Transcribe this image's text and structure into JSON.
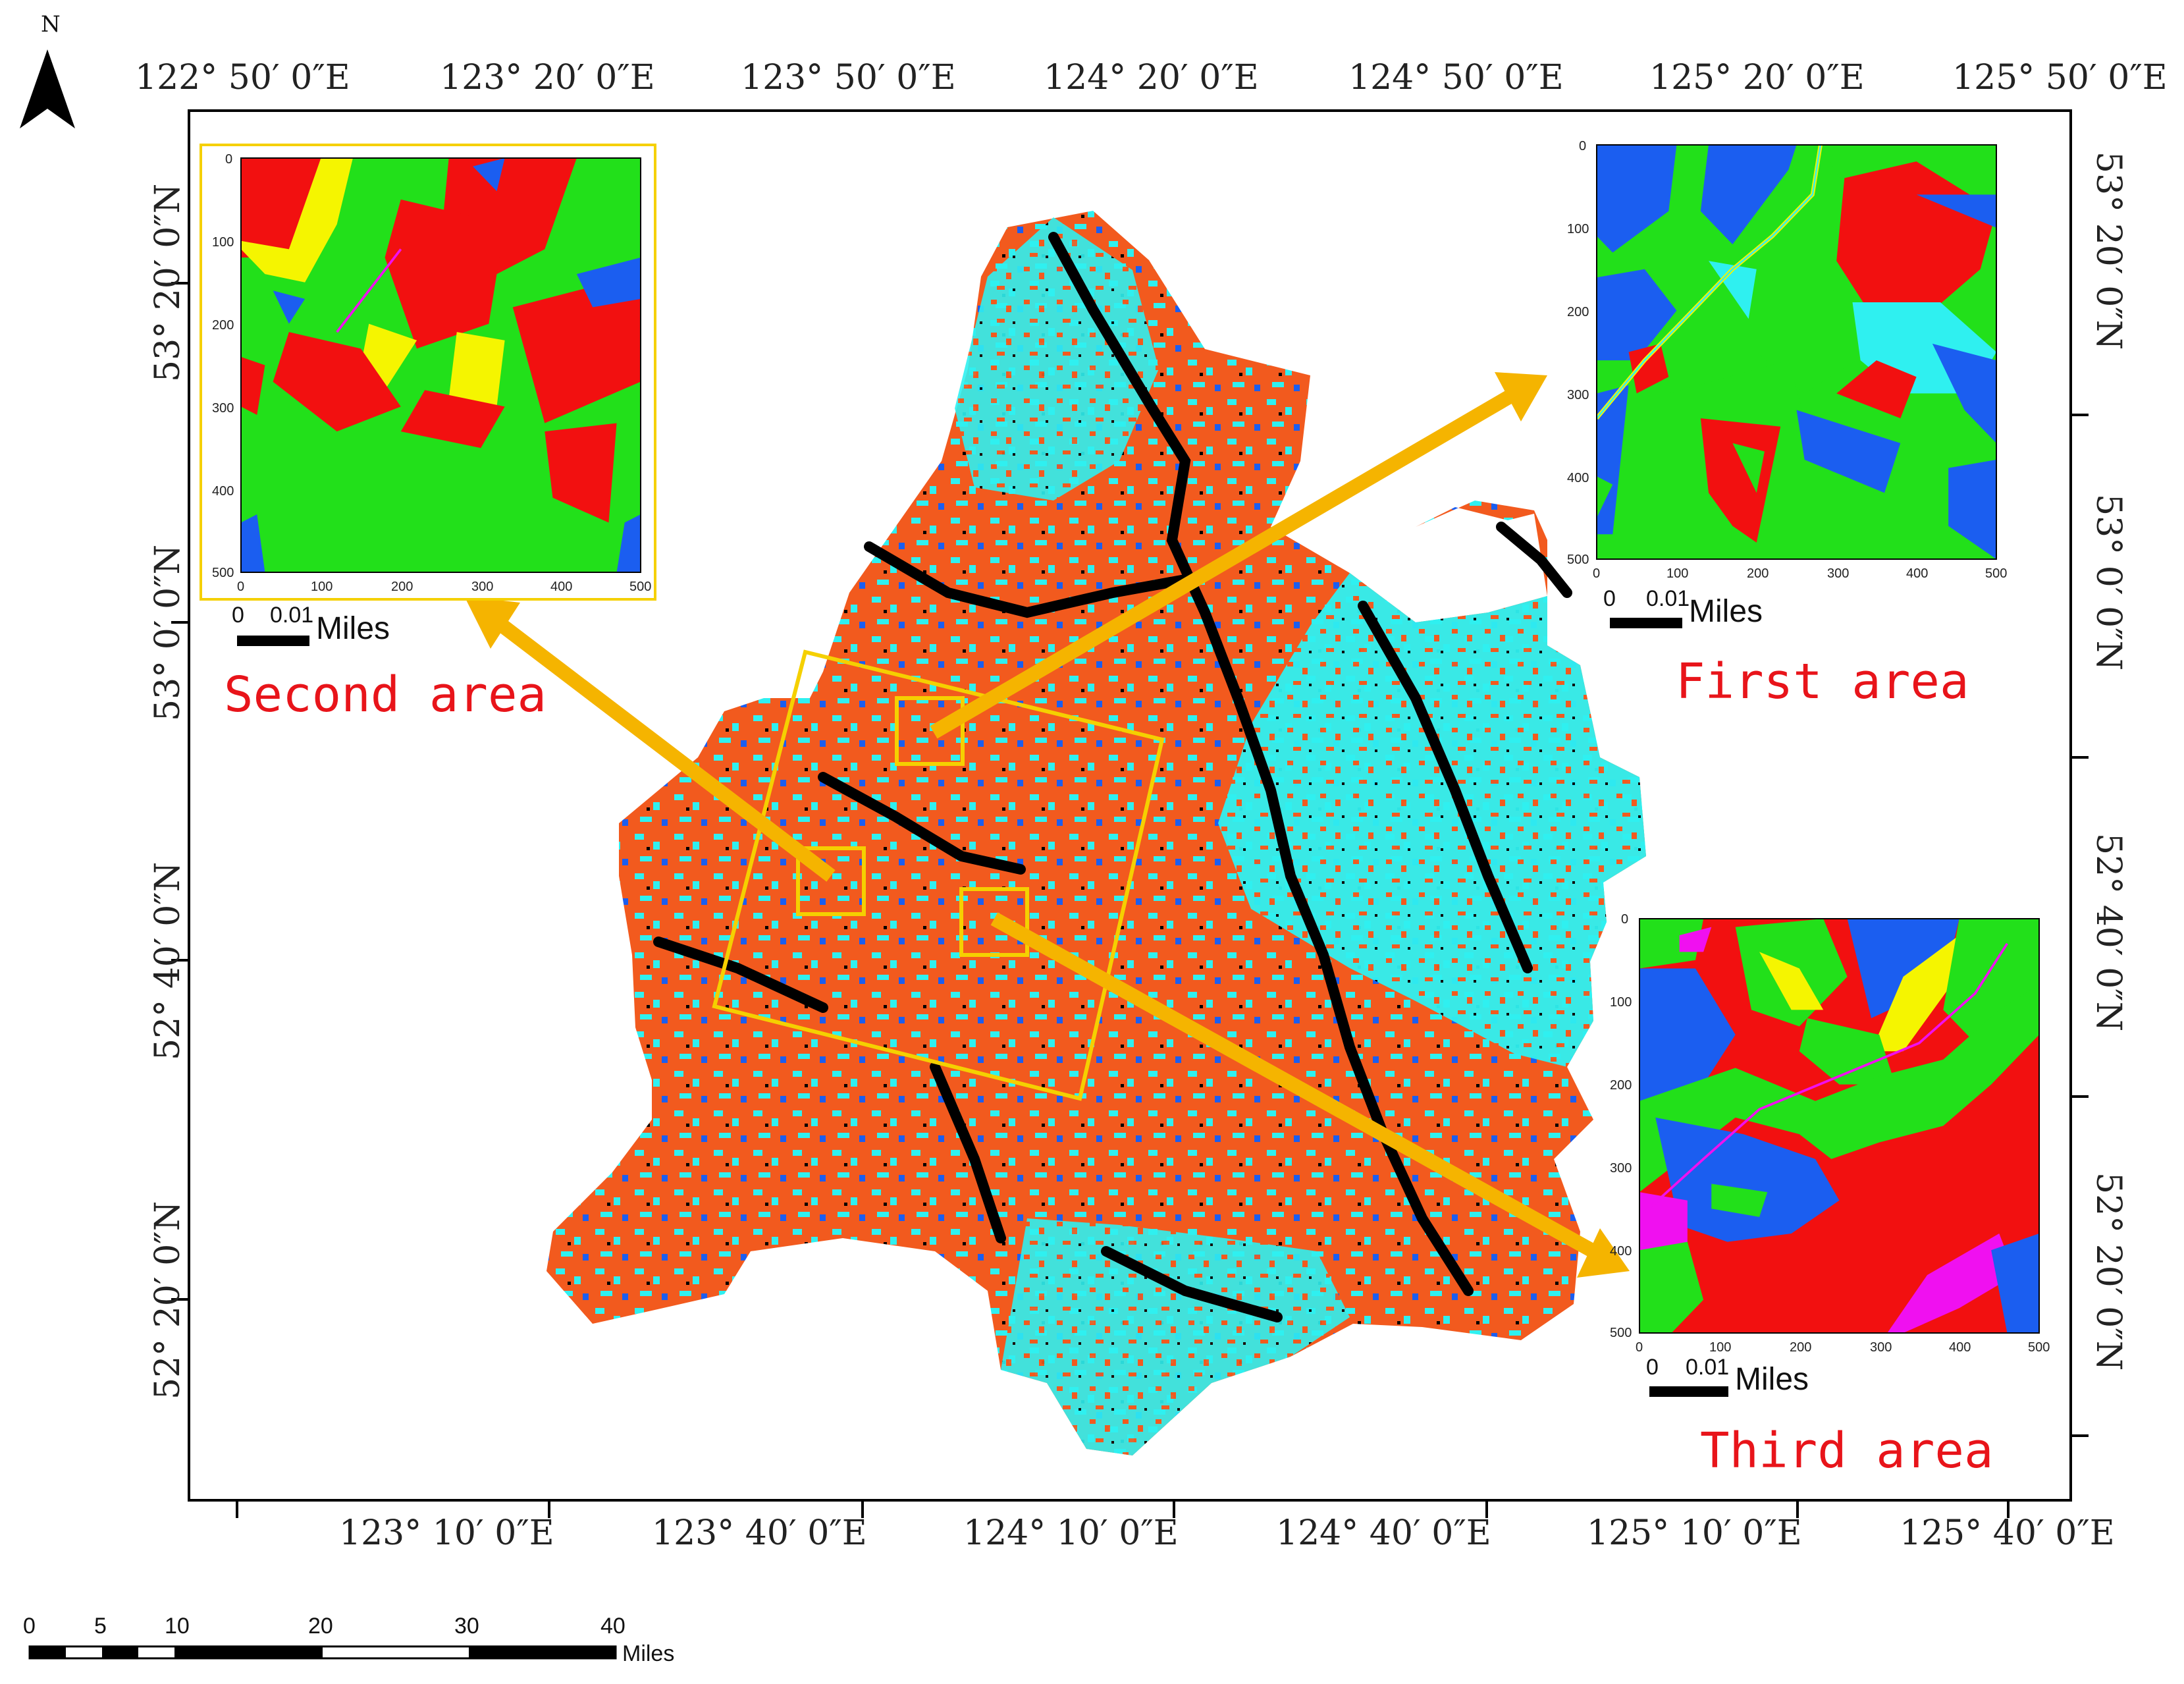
{
  "north_label": "N",
  "top_ticks": [
    "122°  50′ 0″E",
    "123°  20′ 0″E",
    "123°  50′ 0″E",
    "124°  20′ 0″E",
    "124°  50′ 0″E",
    "125°  20′ 0″E",
    "125°  50′ 0″E"
  ],
  "bottom_ticks": [
    "123°  10′ 0″E",
    "123°  40′ 0″E",
    "124°  10′ 0″E",
    "124°  40′ 0″E",
    "125°  10′ 0″E",
    "125°  40′ 0″E"
  ],
  "left_ticks": [
    "53°  20′ 0″N",
    "53°  0′ 0″N",
    "52°  40′ 0″N",
    "52°  20′ 0″N"
  ],
  "right_ticks": [
    "53°  20′ 0″N",
    "53°  0′ 0″N",
    "52°  40′ 0″N",
    "52°  20′ 0″N"
  ],
  "insets": [
    {
      "label": "Second area",
      "ticks": [
        "0",
        "100",
        "200",
        "300",
        "400",
        "500"
      ],
      "scale_zero": "0",
      "scale_value": "0.01",
      "scale_unit": "Miles"
    },
    {
      "label": "First area",
      "ticks": [
        "0",
        "100",
        "200",
        "300",
        "400",
        "500"
      ],
      "scale_zero": "0",
      "scale_value": "0.01",
      "scale_unit": "Miles"
    },
    {
      "label": "Third area",
      "ticks": [
        "0",
        "100",
        "200",
        "300",
        "400",
        "500"
      ],
      "scale_zero": "0",
      "scale_value": "0.01",
      "scale_unit": "Miles"
    }
  ],
  "scale_bar": {
    "labels": [
      "0",
      "5",
      "10",
      "20",
      "30",
      "40"
    ],
    "unit": "Miles"
  },
  "colors": {
    "orange": "#f25a1e",
    "cyan": "#2ff0f0",
    "black": "#000000",
    "blue": "#1b5ef0",
    "green": "#22e01a",
    "red": "#f21010",
    "yellow": "#f5f500",
    "magenta": "#f010f0",
    "frame_yellow": "#f5d000",
    "arrow": "#f5b400"
  }
}
